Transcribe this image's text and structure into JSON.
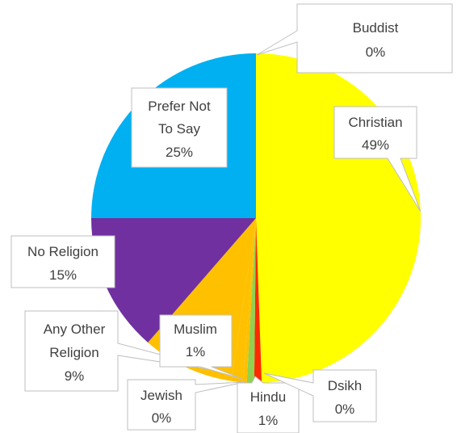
{
  "chart_data": {
    "type": "pie",
    "title": "",
    "colors": {
      "Christian": "#ffff00",
      "Dsikh": "#ff2a00",
      "Hindu": "#92d050",
      "Jewish": "#ffc000",
      "Muslim": "#ffc000",
      "Any Other Religion": "#ffc000",
      "No Religion": "#7030a0",
      "Prefer Not To Say": "#00b0f0",
      "Buddist": "#ffffff"
    },
    "slices": [
      {
        "name": "Buddist",
        "value": 0,
        "label": "0%"
      },
      {
        "name": "Christian",
        "value": 49,
        "label": "49%"
      },
      {
        "name": "Dsikh",
        "value": 0,
        "label": "0%"
      },
      {
        "name": "Hindu",
        "value": 1,
        "label": "1%"
      },
      {
        "name": "Jewish",
        "value": 0,
        "label": "0%"
      },
      {
        "name": "Muslim",
        "value": 1,
        "label": "1%"
      },
      {
        "name": "Any Other Religion",
        "value": 9,
        "label": "9%"
      },
      {
        "name": "No Religion",
        "value": 15,
        "label": "15%"
      },
      {
        "name": "Prefer Not To Say",
        "value": 25,
        "label": "25%"
      }
    ],
    "callouts": [
      {
        "lines": [
          "Buddist",
          "0%"
        ]
      },
      {
        "lines": [
          "Christian",
          "49%"
        ]
      },
      {
        "lines": [
          "Prefer Not",
          "To Say",
          "25%"
        ]
      },
      {
        "lines": [
          "No Religion",
          "15%"
        ]
      },
      {
        "lines": [
          "Any Other",
          "Religion",
          "9%"
        ]
      },
      {
        "lines": [
          "Muslim",
          "1%"
        ]
      },
      {
        "lines": [
          "Jewish",
          "0%"
        ]
      },
      {
        "lines": [
          "Hindu",
          "1%"
        ]
      },
      {
        "lines": [
          "Dsikh",
          "0%"
        ]
      }
    ]
  }
}
